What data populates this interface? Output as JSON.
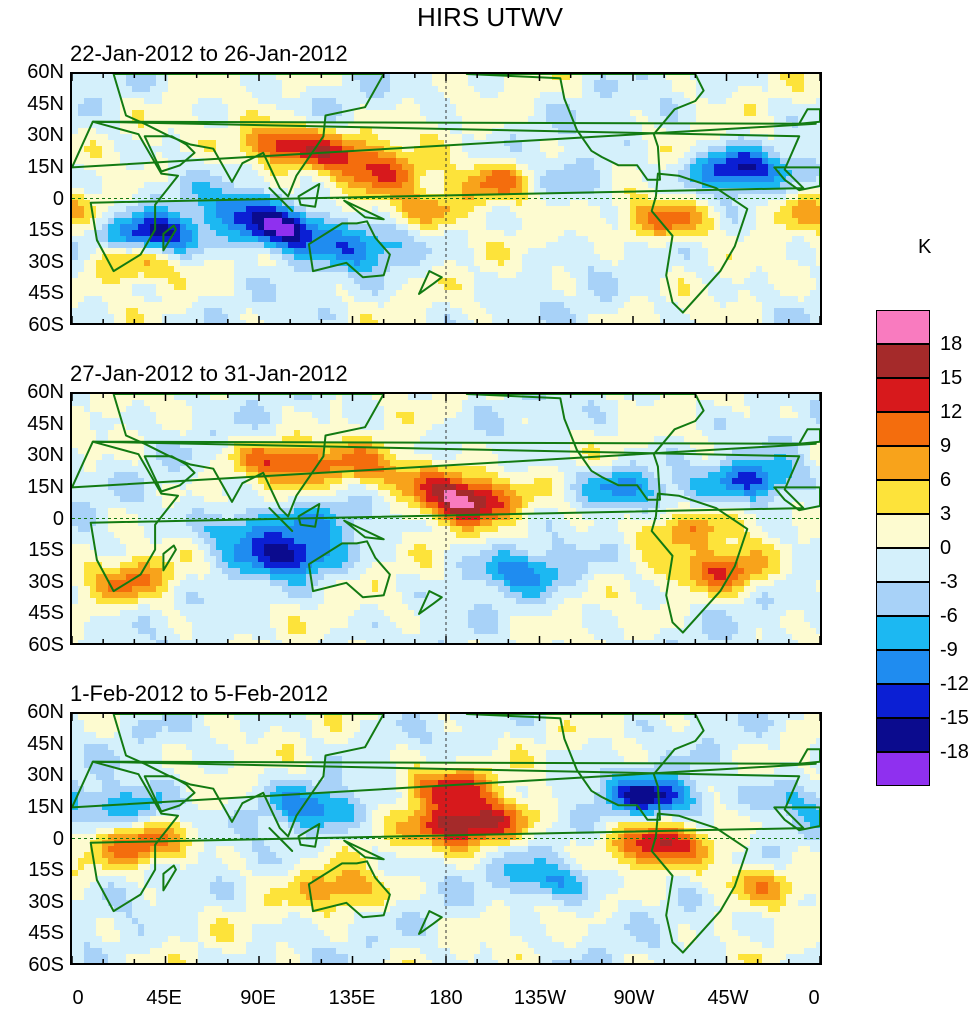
{
  "chart_data": {
    "type": "heatmap",
    "title": "HIRS UTWV",
    "unit": "K",
    "xlabel": "",
    "ylabel": "",
    "xlim": [
      0,
      360
    ],
    "ylim": [
      -60,
      60
    ],
    "lon_ticks": [
      "0",
      "45E",
      "90E",
      "135E",
      "180",
      "135W",
      "90W",
      "45W",
      "0"
    ],
    "lat_ticks": [
      "60N",
      "45N",
      "30N",
      "15N",
      "0",
      "15S",
      "30S",
      "45S",
      "60S"
    ],
    "colorbar": {
      "levels": [
        18,
        15,
        12,
        9,
        6,
        3,
        0,
        -3,
        -6,
        -9,
        -12,
        -15,
        -18
      ],
      "colors": [
        "#f97bbf",
        "#a52a2a",
        "#d7191c",
        "#f46d0d",
        "#f8a31b",
        "#fde33a",
        "#fdfbd0",
        "#d4f0fb",
        "#a8d2f8",
        "#1cb8f2",
        "#1f8cf0",
        "#0b1fd4",
        "#0b0b8e",
        "#8f30ef"
      ]
    },
    "panels": [
      {
        "label": "22-Jan-2012 to 26-Jan-2012",
        "anomalies": [
          {
            "lon": 100,
            "lat": 26,
            "value": 15
          },
          {
            "lon": 130,
            "lat": 22,
            "value": 9
          },
          {
            "lon": 150,
            "lat": 12,
            "value": 9
          },
          {
            "lon": 205,
            "lat": 8,
            "value": 12
          },
          {
            "lon": 170,
            "lat": -5,
            "value": 9
          },
          {
            "lon": 102,
            "lat": -15,
            "value": -18
          },
          {
            "lon": 80,
            "lat": -5,
            "value": -9
          },
          {
            "lon": 140,
            "lat": -25,
            "value": -9
          },
          {
            "lon": 320,
            "lat": 14,
            "value": -15
          },
          {
            "lon": 287,
            "lat": -10,
            "value": 12
          },
          {
            "lon": 40,
            "lat": -18,
            "value": -15
          },
          {
            "lon": 28,
            "lat": -30,
            "value": 9
          },
          {
            "lon": 240,
            "lat": 8,
            "value": -6
          },
          {
            "lon": 355,
            "lat": -5,
            "value": 6
          }
        ]
      },
      {
        "label": "27-Jan-2012 to 31-Jan-2012",
        "anomalies": [
          {
            "lon": 190,
            "lat": 8,
            "value": 18
          },
          {
            "lon": 175,
            "lat": 18,
            "value": 9
          },
          {
            "lon": 100,
            "lat": 28,
            "value": 12
          },
          {
            "lon": 140,
            "lat": 25,
            "value": 9
          },
          {
            "lon": 104,
            "lat": -18,
            "value": -15
          },
          {
            "lon": 80,
            "lat": -5,
            "value": -9
          },
          {
            "lon": 120,
            "lat": 0,
            "value": -6
          },
          {
            "lon": 315,
            "lat": -25,
            "value": 12
          },
          {
            "lon": 290,
            "lat": -5,
            "value": 9
          },
          {
            "lon": 330,
            "lat": 18,
            "value": -12
          },
          {
            "lon": 265,
            "lat": 15,
            "value": -9
          },
          {
            "lon": 215,
            "lat": -25,
            "value": -9
          },
          {
            "lon": 30,
            "lat": -30,
            "value": 9
          }
        ]
      },
      {
        "label": "1-Feb-2012 to 5-Feb-2012",
        "anomalies": [
          {
            "lon": 185,
            "lat": 5,
            "value": 15
          },
          {
            "lon": 180,
            "lat": 25,
            "value": 12
          },
          {
            "lon": 205,
            "lat": 10,
            "value": 9
          },
          {
            "lon": 283,
            "lat": -3,
            "value": 15
          },
          {
            "lon": 280,
            "lat": 20,
            "value": -15
          },
          {
            "lon": 35,
            "lat": -3,
            "value": 12
          },
          {
            "lon": 130,
            "lat": -25,
            "value": 9
          },
          {
            "lon": 115,
            "lat": 15,
            "value": -9
          },
          {
            "lon": 30,
            "lat": 15,
            "value": -9
          },
          {
            "lon": 230,
            "lat": -20,
            "value": -9
          },
          {
            "lon": 345,
            "lat": 20,
            "value": -6
          },
          {
            "lon": 330,
            "lat": -22,
            "value": 9
          }
        ]
      }
    ]
  }
}
